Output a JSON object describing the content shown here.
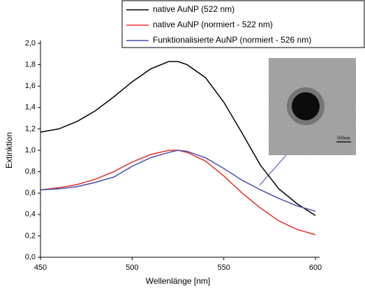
{
  "chart_data": {
    "type": "line",
    "xlabel": "Wellenlänge [nm]",
    "ylabel": "Extinktion",
    "x": [
      450,
      460,
      470,
      480,
      490,
      500,
      510,
      520,
      525,
      530,
      540,
      550,
      560,
      570,
      580,
      590,
      600
    ],
    "series": [
      {
        "name": "native AuNP (522 nm)",
        "color": "#000000",
        "values": [
          1.17,
          1.2,
          1.27,
          1.37,
          1.5,
          1.64,
          1.76,
          1.83,
          1.83,
          1.8,
          1.68,
          1.45,
          1.16,
          0.86,
          0.64,
          0.5,
          0.39
        ]
      },
      {
        "name": "native AuNP (normiert - 522 nm)",
        "color": "#e8302a",
        "values": [
          0.63,
          0.65,
          0.68,
          0.73,
          0.8,
          0.89,
          0.96,
          1.0,
          1.0,
          0.98,
          0.9,
          0.76,
          0.6,
          0.46,
          0.34,
          0.26,
          0.21
        ]
      },
      {
        "name": "Funktionalisierte AuNP (normiert - 526 nm)",
        "color": "#4a4fb0",
        "values": [
          0.63,
          0.64,
          0.66,
          0.7,
          0.75,
          0.85,
          0.93,
          0.98,
          1.0,
          0.99,
          0.93,
          0.83,
          0.72,
          0.63,
          0.55,
          0.48,
          0.43
        ]
      }
    ],
    "xlim": [
      450,
      600
    ],
    "xticks": [
      450,
      500,
      550,
      600
    ],
    "ylim": [
      0,
      2.0
    ],
    "yticks": [
      {
        "value": 0,
        "label": "0,0"
      },
      {
        "value": 0.2,
        "label": "0,2"
      },
      {
        "value": 0.4,
        "label": "0,4"
      },
      {
        "value": 0.6,
        "label": "0,6"
      },
      {
        "value": 0.8,
        "label": "0,8"
      },
      {
        "value": 1.0,
        "label": "1,0"
      },
      {
        "value": 1.2,
        "label": "1,2"
      },
      {
        "value": 1.4,
        "label": "1,4"
      },
      {
        "value": 1.6,
        "label": "1,6"
      },
      {
        "value": 1.8,
        "label": "1,8"
      },
      {
        "value": 2.0,
        "label": "2,0"
      }
    ],
    "legend": "top-right",
    "grid": false,
    "inset_label": "160nm"
  }
}
